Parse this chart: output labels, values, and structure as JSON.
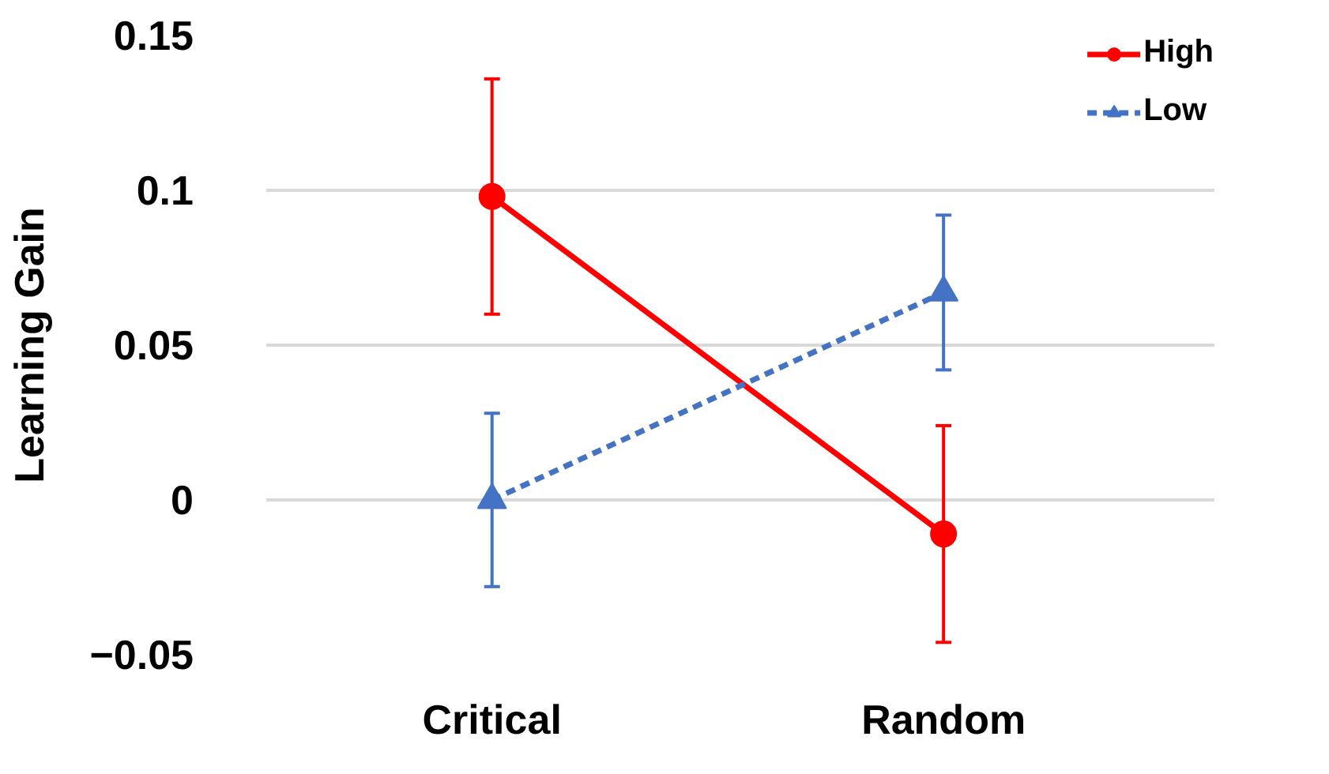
{
  "chart_data": {
    "type": "line",
    "ylabel": "Learning Gain",
    "categories": [
      "Critical",
      "Random"
    ],
    "series": [
      {
        "name": "High",
        "color": "#ff0000",
        "values": [
          0.098,
          -0.011
        ],
        "errors": [
          0.038,
          0.035
        ],
        "marker": "circle",
        "line_style": "solid"
      },
      {
        "name": "Low",
        "color": "#4472c4",
        "values": [
          0.0,
          0.067
        ],
        "errors": [
          0.028,
          0.025
        ],
        "marker": "triangle",
        "line_style": "dashed"
      }
    ],
    "ylim": [
      -0.05,
      0.15
    ],
    "yticks": [
      -0.05,
      0,
      0.05,
      0.1,
      0.15
    ],
    "grid": "y",
    "legend": "top right"
  }
}
